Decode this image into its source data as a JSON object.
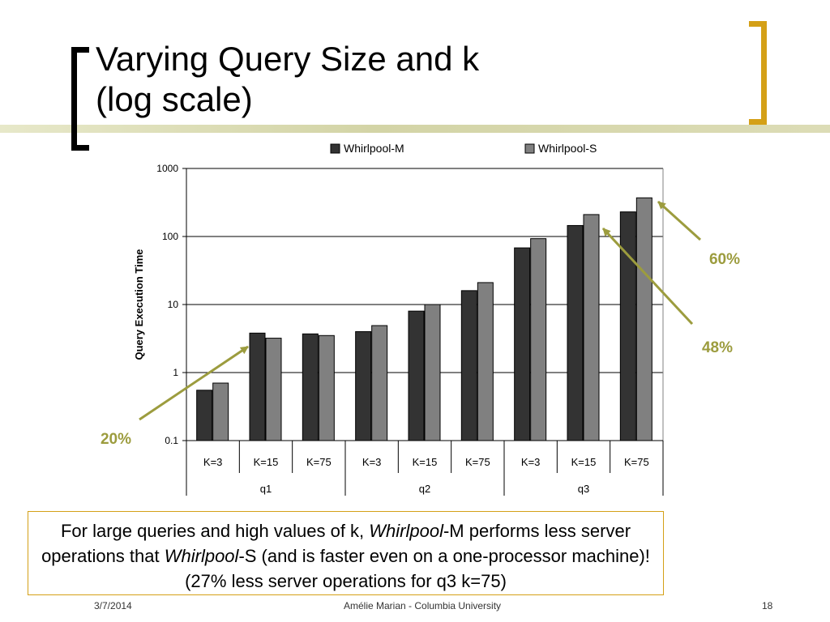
{
  "slide": {
    "title_line1": "Varying Query Size and k",
    "title_line2": "(log scale)",
    "footer": {
      "date": "3/7/2014",
      "author": "Amélie Marian - Columbia University",
      "page": "18"
    },
    "note": {
      "part1": "For large queries and high values of k, ",
      "part2": "Whirlpool",
      "part3": "-M performs less server operations that ",
      "part4": "Whirlpool",
      "part5": "-S (and is faster even on a one-processor machine)! (27% less server operations for q3 k=75)"
    },
    "accent_color": "#d4a017",
    "annotation_color": "#9c9c3e"
  },
  "chart_data": {
    "type": "bar",
    "yscale": "log",
    "ylabel": "Query Execution Time",
    "ylim": [
      0.1,
      1000
    ],
    "yticks": [
      "0.1",
      "1",
      "10",
      "100",
      "1000"
    ],
    "categories": [
      "K=3",
      "K=15",
      "K=75",
      "K=3",
      "K=15",
      "K=75",
      "K=3",
      "K=15",
      "K=75"
    ],
    "groups": [
      {
        "label": "q1",
        "span": 3
      },
      {
        "label": "q2",
        "span": 3
      },
      {
        "label": "q3",
        "span": 3
      }
    ],
    "series": [
      {
        "name": "Whirlpool-M",
        "color": "#333333",
        "values": [
          0.55,
          3.8,
          3.7,
          4.0,
          8.0,
          16,
          68,
          145,
          230
        ]
      },
      {
        "name": "Whirlpool-S",
        "color": "#808080",
        "values": [
          0.7,
          3.2,
          3.5,
          4.9,
          10,
          21,
          93,
          210,
          370
        ]
      }
    ],
    "legend_position": "top",
    "grid": true,
    "annotations": [
      {
        "text": "20%",
        "series": "Whirlpool-S",
        "index": 1
      },
      {
        "text": "48%",
        "series": "Whirlpool-S",
        "index": 7
      },
      {
        "text": "60%",
        "series": "Whirlpool-S",
        "index": 8
      }
    ]
  }
}
